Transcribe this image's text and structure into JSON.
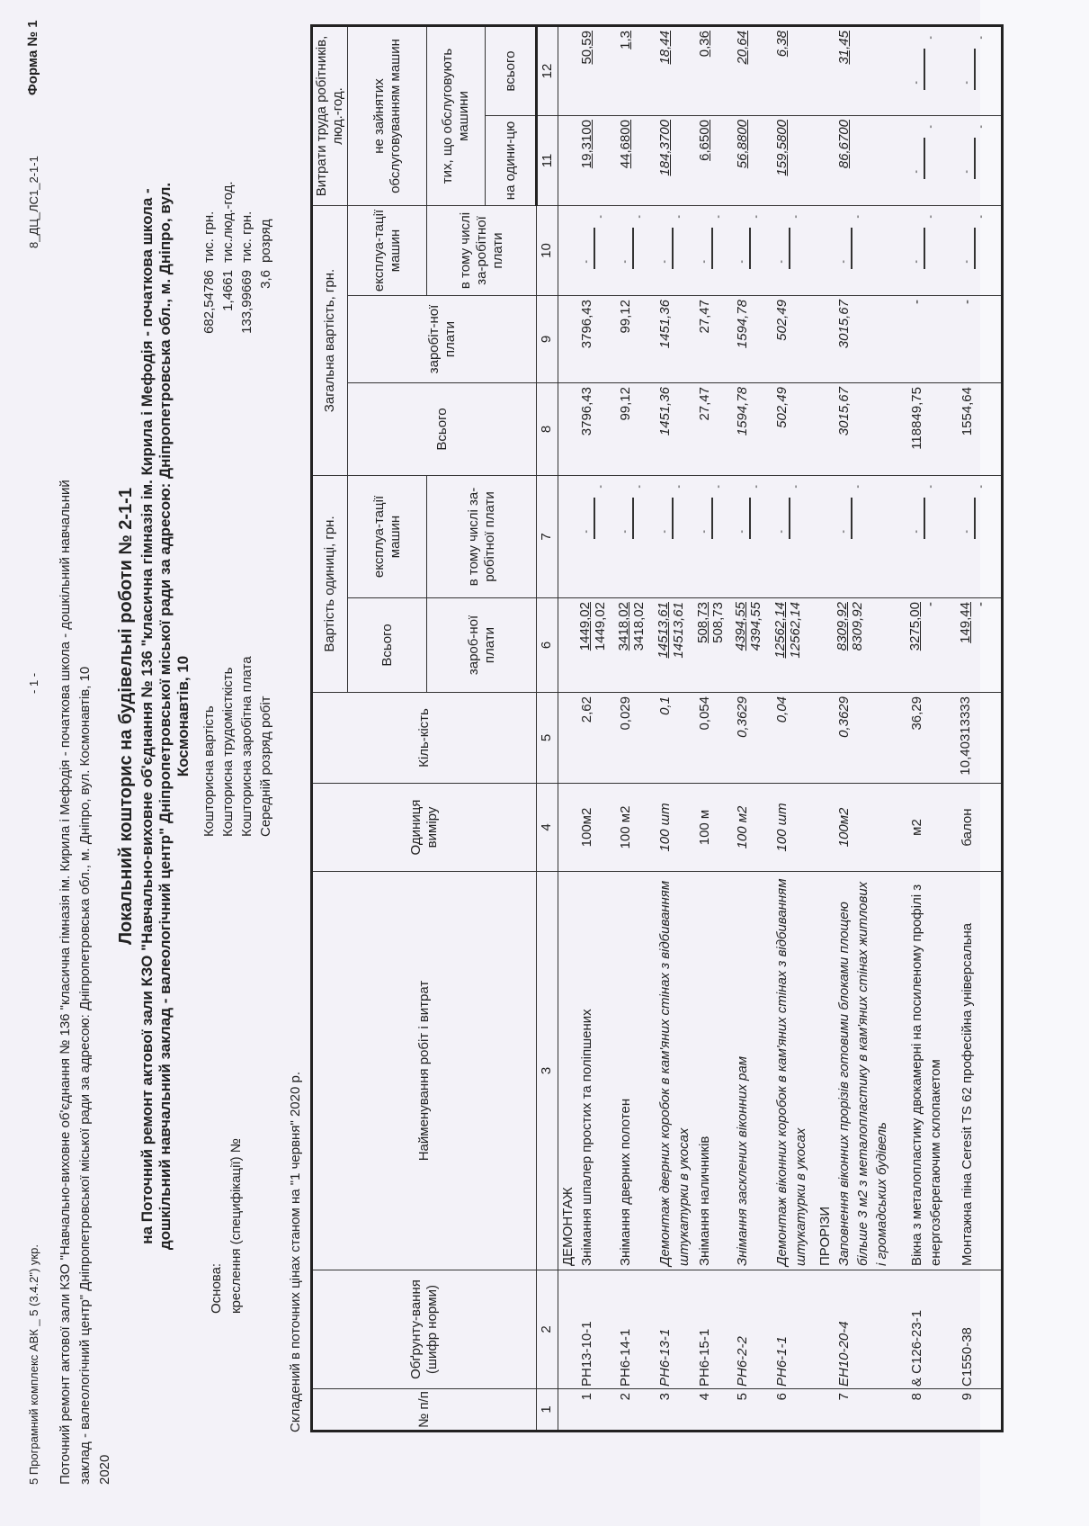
{
  "header": {
    "program": "5 Програмний комплекс АВК _ 5 (3.4.2\") укр.",
    "page_number": "- 1 -",
    "doc_code": "8_ДЦ_ЛС1_2-1-1",
    "form": "Форма № 1"
  },
  "object_description": [
    "Поточний ремонт актової зали КЗО \"Навчально-виховне об'єднання № 136 \"класична гімназія ім. Кирила і Мефодія - початкова школа - дошкільний навчальний",
    "заклад - валеологічний центр\" Дніпропетровської міської ради за адресою: Дніпропетровська обл., м. Дніпро, вул. Космонавтів, 10",
    "2020"
  ],
  "title": "Локальний кошторис на будівельні роботи № 2-1-1",
  "subtitle": [
    "на Поточний ремонт актової зали КЗО \"Навчально-виховне об'єднання № 136 \"класична гімназія ім. Кирила і Мефодія - початкова школа -",
    "дошкільний навчальний заклад - валеологічний центр\" Дніпропетровської міської ради за адресою: Дніпропетровська обл., м. Дніпро, вул.",
    "Космонавтів, 10"
  ],
  "basis": {
    "label": "Основа:",
    "drawings": "креслення (специфікації) №"
  },
  "summary": [
    {
      "label": "Кошторисна вартість",
      "value": "682,54786",
      "unit": "тис. грн."
    },
    {
      "label": "Кошторисна трудомісткість",
      "value": "1,4661",
      "unit": "тис.люд.-год."
    },
    {
      "label": "Кошторисна заробітна плата",
      "value": "133,99669",
      "unit": "тис. грн."
    },
    {
      "label": "Середній розряд робіт",
      "value": "3,6",
      "unit": "розряд"
    }
  ],
  "prices_note": "Складений в поточних цінах станом на \"1 червня\" 2020 р.",
  "table": {
    "headers": {
      "num": "№ п/п",
      "code": "Обґрунту-вання (шифр норми)",
      "name": "Найменування робіт і витрат",
      "unit": "Одиниця виміру",
      "qty": "Кіль-кість",
      "unit_cost": "Вартість одиниці, грн.",
      "unit_total": "Всього",
      "unit_wage": "зароб-ної плати",
      "unit_mach": "експлуа-тації машин",
      "unit_mach_wage": "в тому числі за-робітної плати",
      "total_cost": "Загальна вартість, грн.",
      "total": "Всього",
      "total_wage": "заробіт-ної плати",
      "total_mach": "експлуа-тації машин",
      "total_mach_wage": "в тому числі за-робітної плати",
      "labor": "Витрати труда робітників, люд.-год.",
      "labor_not_mach": "не зайнятих обслуговуванням машин",
      "labor_mach": "тих, що обслуговують машини",
      "labor_unit": "на одини-цю",
      "labor_total": "всього"
    },
    "col_numbers": [
      "1",
      "2",
      "3",
      "4",
      "5",
      "6",
      "7",
      "8",
      "9",
      "10",
      "11",
      "12"
    ],
    "rows": [
      {
        "n": "1",
        "code": "РН13-10-1",
        "section": "ДЕМОНТАЖ",
        "desc": "Знімання шпалер простих та поліпшених",
        "unit": "100м2",
        "qty": "2,62",
        "unit_total": "1449,02",
        "unit_wage": "1449,02",
        "total": "3796,43",
        "wage": "3796,43",
        "labor_unit": "19,3100",
        "labor_total": "50,59",
        "italic": false
      },
      {
        "n": "2",
        "code": "РН6-14-1",
        "section": "",
        "desc": "Знімання дверних полотен",
        "unit": "100 м2",
        "qty": "0,029",
        "unit_total": "3418,02",
        "unit_wage": "3418,02",
        "total": "99,12",
        "wage": "99,12",
        "labor_unit": "44,6800",
        "labor_total": "1,3",
        "italic": false
      },
      {
        "n": "3",
        "code": "РН6-13-1",
        "section": "",
        "desc": "Демонтаж дверних коробок в кам'яних стінах з відбиванням штукатурки в укосах",
        "unit": "100 шт",
        "qty": "0,1",
        "unit_total": "14513,61",
        "unit_wage": "14513,61",
        "total": "1451,36",
        "wage": "1451,36",
        "labor_unit": "184,3700",
        "labor_total": "18,44",
        "italic": true
      },
      {
        "n": "4",
        "code": "РН6-15-1",
        "section": "",
        "desc": "Знімання наличників",
        "unit": "100 м",
        "qty": "0,054",
        "unit_total": "508,73",
        "unit_wage": "508,73",
        "total": "27,47",
        "wage": "27,47",
        "labor_unit": "6,6500",
        "labor_total": "0,36",
        "italic": false
      },
      {
        "n": "5",
        "code": "РН6-2-2",
        "section": "",
        "desc": "Знімання засклених віконних рам",
        "unit": "100 м2",
        "qty": "0,3629",
        "unit_total": "4394,55",
        "unit_wage": "4394,55",
        "total": "1594,78",
        "wage": "1594,78",
        "labor_unit": "56,8800",
        "labor_total": "20,64",
        "italic": true
      },
      {
        "n": "6",
        "code": "РН6-1-1",
        "section": "",
        "desc": "Демонтаж віконних коробок в кам'яних стінах з відбиванням штукатурки в укосах",
        "unit": "100 шт",
        "qty": "0,04",
        "unit_total": "12562,14",
        "unit_wage": "12562,14",
        "total": "502,49",
        "wage": "502,49",
        "labor_unit": "159,5800",
        "labor_total": "6,38",
        "italic": true
      },
      {
        "n": "7",
        "code": "ЕН10-20-4",
        "section": "ПРОРІЗИ",
        "desc": "Заповнення віконних прорізів готовими блоками площею більше 3 м2 з металопластику в кам'яних стінах житлових і громадських будівель",
        "unit": "100м2",
        "qty": "0,3629",
        "unit_total": "8309,92",
        "unit_wage": "8309,92",
        "total": "3015,67",
        "wage": "3015,67",
        "labor_unit": "86,6700",
        "labor_total": "31,45",
        "italic": true
      },
      {
        "n": "8",
        "code": "& С126-23-1",
        "section": "",
        "desc": "Вікна з металопластику двокамерні на посиленому профілі з енергозберегаючим склопакетом",
        "unit": "м2",
        "qty": "36,29",
        "unit_total": "3275,00",
        "unit_wage": "-",
        "total": "118849,75",
        "wage": "-",
        "labor_unit": "",
        "labor_total": "",
        "italic": false
      },
      {
        "n": "9",
        "code": "С1550-38",
        "section": "",
        "desc": "Монтажна піна Ceresit TS 62 професійна універсальна",
        "unit": "балон",
        "qty": "10,40313333",
        "unit_total": "149,44",
        "unit_wage": "-",
        "total": "1554,64",
        "wage": "-",
        "labor_unit": "",
        "labor_total": "",
        "italic": false
      }
    ],
    "dash": "-"
  }
}
